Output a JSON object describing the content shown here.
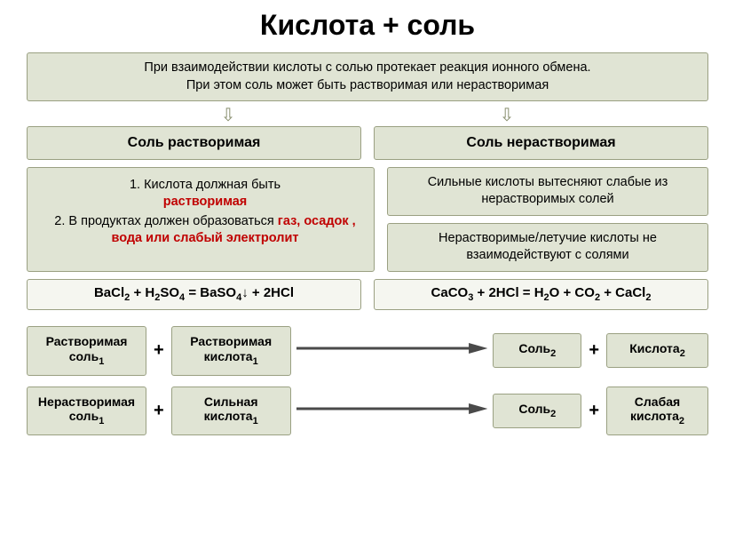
{
  "theme": {
    "box_bg": "#e0e4d4",
    "box_border": "#9aa082",
    "eq_bg": "#f5f6f0",
    "text_color": "#000000",
    "red": "#c00000",
    "arrow_color": "#4a4a4a",
    "outline_arrow_color": "#8a9070"
  },
  "title": "Кислота + соль",
  "intro": {
    "line1": "При взаимодействии кислоты с солью протекает реакция ионного обмена.",
    "line2": "При этом соль может быть растворимая или нерастворимая"
  },
  "branch_headers": {
    "left": "Соль растворимая",
    "right": "Соль нерастворимая"
  },
  "left_rules": {
    "item1_pre": "Кислота должная быть",
    "item1_red": "растворимая",
    "item2_pre": "В продуктах должен образоваться ",
    "item2_red": "газ, осадок , вода или слабый электролит"
  },
  "right_rules": {
    "box1": "Сильные кислоты вытесняют слабые из нерастворимых солей",
    "box2": "Нерастворимые/летучие кислоты не взаимодействуют с солями"
  },
  "equations": {
    "left": "BaCl₂ + H₂SO₄ = BaSO₄↓ + 2HCl",
    "right": "CaCO₃ + 2HCl = H₂O + CO₂ + CaCl₂"
  },
  "schema1": {
    "r1_l1": "Растворимая",
    "r1_l2": "соль₁",
    "r2_l1": "Растворимая",
    "r2_l2": "кислота₁",
    "p1": "Соль₂",
    "p2": "Кислота₂"
  },
  "schema2": {
    "r1_l1": "Нерастворимая",
    "r1_l2": "соль₁",
    "r2_l1": "Сильная",
    "r2_l2": "кислота₁",
    "p1": "Соль₂",
    "p2_l1": "Слабая",
    "p2_l2": "кислота₂"
  }
}
